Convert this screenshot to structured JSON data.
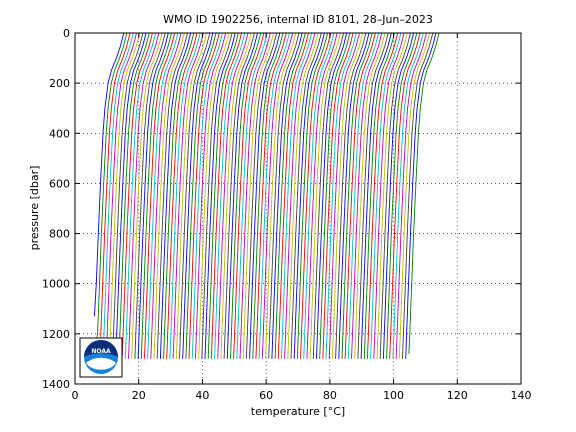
{
  "chart_data": {
    "type": "line",
    "title": "WMO ID 1902256, internal ID 8101, 28–Jun–2023",
    "xlabel": "temperature [°C]",
    "ylabel": "pressure [dbar]",
    "xlim": [
      0,
      140
    ],
    "ylim": [
      1400,
      0
    ],
    "y_reversed": true,
    "grid": true,
    "x_ticks": [
      0,
      20,
      40,
      60,
      80,
      100,
      120,
      140
    ],
    "y_ticks": [
      0,
      200,
      400,
      600,
      800,
      1000,
      1200,
      1400
    ],
    "series_colors": [
      "#0000ff",
      "#008000",
      "#ff0000",
      "#00bfbf",
      "#bf00bf",
      "#bfbf00",
      "#404040"
    ],
    "profile_shape": {
      "pressure": [
        0,
        50,
        100,
        150,
        200,
        300,
        400,
        600,
        800,
        1000,
        1200,
        1300
      ],
      "temperature_offset": [
        9.5,
        8.5,
        7.2,
        5.6,
        4.6,
        3.6,
        3.0,
        2.2,
        1.5,
        0.9,
        0.3,
        0.0
      ]
    },
    "profiles": [
      {
        "t_deep": 5.8,
        "max_p": 1130
      },
      {
        "t_deep": 6.8,
        "max_p": 1220
      },
      {
        "t_deep": 7.8,
        "max_p": 1280
      },
      {
        "t_deep": 8.8,
        "max_p": 1300
      },
      {
        "t_deep": 9.8,
        "max_p": 1310
      },
      {
        "t_deep": 10.8,
        "max_p": 1310
      },
      {
        "t_deep": 11.8,
        "max_p": 1320
      },
      {
        "t_deep": 12.8,
        "max_p": 1320
      },
      {
        "t_deep": 13.8,
        "max_p": 1320
      },
      {
        "t_deep": 14.8,
        "max_p": 1320
      },
      {
        "t_deep": 15.8,
        "max_p": 1320
      },
      {
        "t_deep": 16.8,
        "max_p": 1320
      },
      {
        "t_deep": 17.8,
        "max_p": 1320
      },
      {
        "t_deep": 18.8,
        "max_p": 1320
      },
      {
        "t_deep": 19.8,
        "max_p": 1320
      },
      {
        "t_deep": 20.8,
        "max_p": 1320
      },
      {
        "t_deep": 21.8,
        "max_p": 1320
      },
      {
        "t_deep": 22.8,
        "max_p": 1320
      },
      {
        "t_deep": 23.8,
        "max_p": 1320
      },
      {
        "t_deep": 24.8,
        "max_p": 1320
      },
      {
        "t_deep": 25.8,
        "max_p": 1320
      },
      {
        "t_deep": 26.8,
        "max_p": 1320
      },
      {
        "t_deep": 27.8,
        "max_p": 1320
      },
      {
        "t_deep": 28.8,
        "max_p": 1320
      },
      {
        "t_deep": 29.8,
        "max_p": 1320
      },
      {
        "t_deep": 30.8,
        "max_p": 1320
      },
      {
        "t_deep": 31.8,
        "max_p": 1320
      },
      {
        "t_deep": 32.8,
        "max_p": 1320
      },
      {
        "t_deep": 33.8,
        "max_p": 1320
      },
      {
        "t_deep": 34.8,
        "max_p": 1320
      },
      {
        "t_deep": 35.8,
        "max_p": 1320
      },
      {
        "t_deep": 36.8,
        "max_p": 1320
      },
      {
        "t_deep": 37.8,
        "max_p": 1320
      },
      {
        "t_deep": 38.8,
        "max_p": 1320
      },
      {
        "t_deep": 39.8,
        "max_p": 1320
      },
      {
        "t_deep": 40.8,
        "max_p": 1320
      },
      {
        "t_deep": 41.8,
        "max_p": 1320
      },
      {
        "t_deep": 42.8,
        "max_p": 1320
      },
      {
        "t_deep": 43.8,
        "max_p": 1320
      },
      {
        "t_deep": 44.8,
        "max_p": 1320
      },
      {
        "t_deep": 45.8,
        "max_p": 1320
      },
      {
        "t_deep": 46.8,
        "max_p": 1320
      },
      {
        "t_deep": 47.8,
        "max_p": 1320
      },
      {
        "t_deep": 48.8,
        "max_p": 1320
      },
      {
        "t_deep": 49.8,
        "max_p": 1320
      },
      {
        "t_deep": 50.8,
        "max_p": 1320
      },
      {
        "t_deep": 51.8,
        "max_p": 1320
      },
      {
        "t_deep": 52.8,
        "max_p": 1320
      },
      {
        "t_deep": 53.8,
        "max_p": 1320
      },
      {
        "t_deep": 54.8,
        "max_p": 1320
      },
      {
        "t_deep": 55.8,
        "max_p": 1320
      },
      {
        "t_deep": 56.8,
        "max_p": 1320
      },
      {
        "t_deep": 57.8,
        "max_p": 1320
      },
      {
        "t_deep": 58.8,
        "max_p": 1320
      },
      {
        "t_deep": 59.8,
        "max_p": 1320
      },
      {
        "t_deep": 60.8,
        "max_p": 1320
      },
      {
        "t_deep": 61.8,
        "max_p": 1320
      },
      {
        "t_deep": 62.8,
        "max_p": 1320
      },
      {
        "t_deep": 63.8,
        "max_p": 1320
      },
      {
        "t_deep": 64.8,
        "max_p": 1320
      },
      {
        "t_deep": 65.8,
        "max_p": 1320
      },
      {
        "t_deep": 66.8,
        "max_p": 1320
      },
      {
        "t_deep": 67.8,
        "max_p": 1320
      },
      {
        "t_deep": 68.8,
        "max_p": 1320
      },
      {
        "t_deep": 69.8,
        "max_p": 1320
      },
      {
        "t_deep": 70.8,
        "max_p": 1320
      },
      {
        "t_deep": 71.8,
        "max_p": 1320
      },
      {
        "t_deep": 72.8,
        "max_p": 1320
      },
      {
        "t_deep": 73.8,
        "max_p": 1320
      },
      {
        "t_deep": 74.8,
        "max_p": 1320
      },
      {
        "t_deep": 75.8,
        "max_p": 1320
      },
      {
        "t_deep": 76.8,
        "max_p": 1320
      },
      {
        "t_deep": 77.8,
        "max_p": 1320
      },
      {
        "t_deep": 78.8,
        "max_p": 1320
      },
      {
        "t_deep": 79.8,
        "max_p": 1320
      },
      {
        "t_deep": 80.8,
        "max_p": 1320
      },
      {
        "t_deep": 81.8,
        "max_p": 1320
      },
      {
        "t_deep": 82.8,
        "max_p": 1320
      },
      {
        "t_deep": 83.8,
        "max_p": 1320
      },
      {
        "t_deep": 84.8,
        "max_p": 1320
      },
      {
        "t_deep": 85.8,
        "max_p": 1320
      },
      {
        "t_deep": 86.8,
        "max_p": 1320
      },
      {
        "t_deep": 87.8,
        "max_p": 1320
      },
      {
        "t_deep": 88.8,
        "max_p": 1320
      },
      {
        "t_deep": 89.8,
        "max_p": 1320
      },
      {
        "t_deep": 90.8,
        "max_p": 1320
      },
      {
        "t_deep": 91.8,
        "max_p": 1320
      },
      {
        "t_deep": 92.8,
        "max_p": 1320
      },
      {
        "t_deep": 93.8,
        "max_p": 1320
      },
      {
        "t_deep": 94.8,
        "max_p": 1320
      },
      {
        "t_deep": 95.8,
        "max_p": 1320
      },
      {
        "t_deep": 96.8,
        "max_p": 1320
      },
      {
        "t_deep": 97.8,
        "max_p": 1320
      },
      {
        "t_deep": 98.8,
        "max_p": 1320
      },
      {
        "t_deep": 99.8,
        "max_p": 1320
      },
      {
        "t_deep": 100.8,
        "max_p": 1320
      },
      {
        "t_deep": 101.8,
        "max_p": 1320
      },
      {
        "t_deep": 102.8,
        "max_p": 1310
      },
      {
        "t_deep": 103.8,
        "max_p": 1300
      },
      {
        "t_deep": 104.8,
        "max_p": 1280
      }
    ],
    "logo": {
      "text": "NOAA"
    }
  }
}
